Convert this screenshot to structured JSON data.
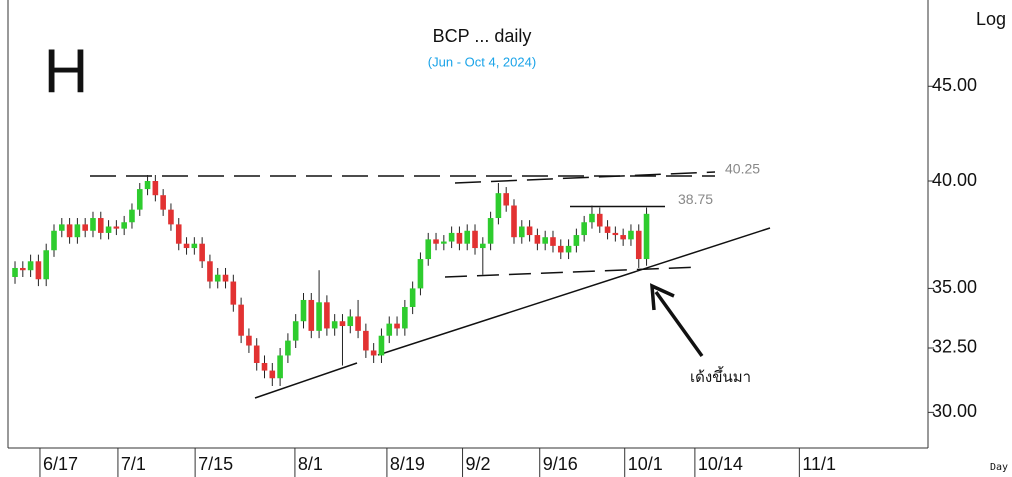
{
  "chart_data": {
    "type": "candlestick",
    "title": "BCP ... daily",
    "subtitle": "(Jun - Oct 4, 2024)",
    "badge": "H",
    "scale_label": "Log",
    "x_unit_label": "Day",
    "annotation": "เด้งขึ้นมา",
    "log_scale": true,
    "up_color": "#2ecc2e",
    "down_color": "#e23232",
    "open": [
      35.5,
      35.9,
      35.8,
      36.2,
      35.4,
      36.7,
      37.6,
      37.9,
      37.3,
      37.9,
      37.6,
      38.2,
      37.5,
      37.8,
      37.7,
      38.0,
      38.6,
      39.6,
      40.0,
      39.3,
      38.6,
      37.9,
      37.0,
      36.8,
      37.0,
      36.2,
      35.3,
      35.6,
      35.3,
      34.3,
      33.0,
      32.6,
      31.9,
      31.6,
      31.3,
      32.2,
      32.8,
      33.6,
      34.5,
      33.2,
      34.4,
      33.3,
      33.6,
      33.4,
      33.8,
      33.2,
      32.4,
      32.2,
      33.0,
      33.5,
      33.3,
      34.2,
      35.0,
      36.3,
      37.2,
      37.0,
      37.1,
      37.5,
      37.0,
      37.6,
      36.8,
      37.0,
      38.2,
      39.4,
      38.8,
      37.3,
      37.8,
      37.4,
      37.0,
      37.3,
      36.9,
      36.6,
      36.9,
      37.4,
      38.0,
      38.4,
      37.8,
      37.5,
      37.4,
      37.2,
      37.6,
      36.3
    ],
    "high": [
      36.2,
      36.2,
      36.5,
      36.5,
      37.0,
      37.9,
      38.2,
      38.2,
      38.2,
      38.2,
      38.5,
      38.5,
      38.1,
      38.1,
      38.3,
      38.9,
      39.9,
      40.3,
      40.3,
      39.6,
      38.9,
      38.2,
      37.3,
      37.3,
      37.3,
      36.5,
      35.9,
      35.9,
      35.6,
      34.6,
      33.3,
      32.9,
      32.2,
      31.9,
      32.5,
      33.1,
      33.9,
      34.8,
      34.8,
      35.8,
      34.7,
      33.9,
      33.9,
      34.1,
      34.5,
      33.5,
      32.7,
      33.3,
      33.8,
      33.8,
      34.5,
      35.3,
      36.6,
      37.5,
      37.5,
      37.4,
      37.8,
      37.8,
      37.9,
      37.9,
      37.3,
      38.5,
      39.9,
      39.7,
      39.1,
      38.1,
      38.1,
      37.7,
      37.6,
      37.6,
      37.2,
      37.2,
      37.7,
      38.3,
      38.8,
      38.7,
      38.1,
      37.8,
      37.7,
      37.9,
      37.9,
      38.7
    ],
    "low": [
      35.2,
      35.5,
      35.5,
      35.1,
      35.1,
      36.4,
      37.3,
      37.0,
      37.0,
      37.3,
      37.3,
      37.2,
      37.2,
      37.4,
      37.4,
      37.7,
      38.3,
      39.3,
      39.0,
      38.3,
      37.6,
      36.7,
      36.5,
      36.5,
      35.9,
      35.0,
      35.0,
      35.0,
      34.0,
      32.7,
      32.3,
      31.6,
      31.3,
      31.0,
      31.0,
      31.9,
      32.5,
      33.3,
      32.9,
      32.9,
      33.0,
      33.0,
      31.8,
      33.1,
      32.9,
      32.1,
      31.9,
      31.9,
      32.7,
      33.0,
      33.0,
      33.9,
      34.7,
      36.0,
      36.7,
      36.7,
      36.8,
      36.7,
      36.7,
      36.5,
      35.6,
      36.7,
      37.9,
      38.5,
      37.0,
      37.0,
      37.1,
      36.7,
      36.7,
      36.6,
      36.3,
      36.3,
      36.6,
      37.1,
      37.7,
      37.5,
      37.2,
      37.1,
      36.9,
      36.9,
      35.9,
      36.0
    ],
    "close": [
      35.9,
      35.8,
      36.2,
      35.4,
      36.7,
      37.6,
      37.9,
      37.3,
      37.9,
      37.6,
      38.2,
      37.5,
      37.8,
      37.7,
      38.0,
      38.6,
      39.6,
      40.0,
      39.3,
      38.6,
      37.9,
      37.0,
      36.8,
      37.0,
      36.2,
      35.3,
      35.6,
      35.3,
      34.3,
      33.0,
      32.6,
      31.9,
      31.6,
      31.3,
      32.2,
      32.8,
      33.6,
      34.5,
      33.2,
      34.4,
      33.3,
      33.6,
      33.4,
      33.8,
      33.2,
      32.4,
      32.2,
      33.0,
      33.5,
      33.3,
      34.2,
      35.0,
      36.3,
      37.2,
      37.0,
      37.1,
      37.5,
      37.0,
      37.6,
      36.8,
      37.0,
      38.2,
      39.4,
      38.8,
      37.3,
      37.8,
      37.4,
      37.0,
      37.3,
      36.9,
      36.6,
      36.9,
      37.4,
      38.0,
      38.4,
      37.8,
      37.5,
      37.4,
      37.2,
      37.6,
      36.3,
      38.4
    ],
    "levels": [
      40.25,
      38.75
    ],
    "xlim": [
      -0.9,
      117.1
    ],
    "xticks": [
      {
        "value": 3.2,
        "label": "6/17"
      },
      {
        "value": 13.2,
        "label": "7/1"
      },
      {
        "value": 23.1,
        "label": "7/15"
      },
      {
        "value": 35.9,
        "label": "8/1"
      },
      {
        "value": 47.7,
        "label": "8/19"
      },
      {
        "value": 57.4,
        "label": "9/2"
      },
      {
        "value": 67.3,
        "label": "9/16"
      },
      {
        "value": 78.2,
        "label": "10/1"
      },
      {
        "value": 87.2,
        "label": "10/14"
      },
      {
        "value": 100.6,
        "label": "11/1"
      }
    ],
    "ylim": [
      28.7,
      49.6
    ],
    "yticks": [
      {
        "value": 30,
        "label": "30.00"
      },
      {
        "value": 32.5,
        "label": "32.50"
      },
      {
        "value": 35,
        "label": "35.00"
      },
      {
        "value": 40,
        "label": "40.00"
      },
      {
        "value": 45,
        "label": "45.00"
      }
    ]
  }
}
